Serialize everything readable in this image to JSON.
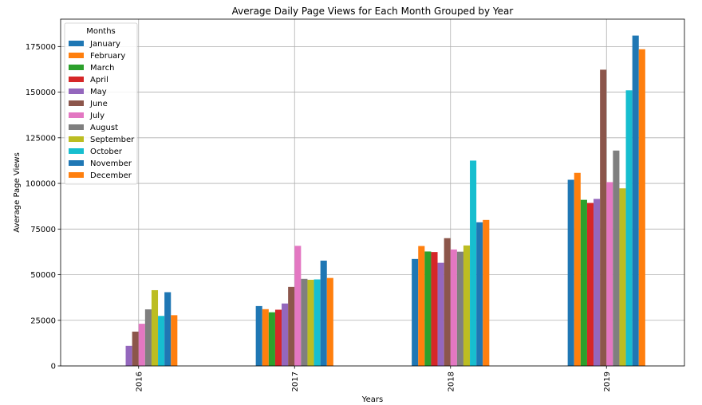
{
  "chart_data": {
    "type": "bar",
    "title": "Average Daily Page Views for Each Month Grouped by Year",
    "xlabel": "Years",
    "ylabel": "Average Page Views",
    "categories": [
      "2016",
      "2017",
      "2018",
      "2019"
    ],
    "ylim": [
      0,
      190000
    ],
    "yticks": [
      0,
      25000,
      50000,
      75000,
      100000,
      125000,
      150000,
      175000
    ],
    "grid": true,
    "legend": {
      "title": "Months",
      "placement": "top-left"
    },
    "series": [
      {
        "name": "January",
        "color": "#1f77b4",
        "values": [
          null,
          32800,
          58600,
          102000
        ]
      },
      {
        "name": "February",
        "color": "#ff7f0e",
        "values": [
          null,
          31100,
          65700,
          105800
        ]
      },
      {
        "name": "March",
        "color": "#2ca02c",
        "values": [
          null,
          29400,
          62700,
          91000
        ]
      },
      {
        "name": "April",
        "color": "#d62728",
        "values": [
          null,
          30800,
          62400,
          89300
        ]
      },
      {
        "name": "May",
        "color": "#9467bd",
        "values": [
          11000,
          34200,
          56500,
          91500
        ]
      },
      {
        "name": "June",
        "color": "#8c564b",
        "values": [
          18800,
          43300,
          70000,
          162300
        ]
      },
      {
        "name": "July",
        "color": "#e377c2",
        "values": [
          23100,
          65800,
          63800,
          100700
        ]
      },
      {
        "name": "August",
        "color": "#7f7f7f",
        "values": [
          31000,
          47700,
          62600,
          118000
        ]
      },
      {
        "name": "September",
        "color": "#bcbd22",
        "values": [
          41500,
          47200,
          66000,
          97300
        ]
      },
      {
        "name": "October",
        "color": "#17becf",
        "values": [
          27400,
          47400,
          112500,
          151000
        ]
      },
      {
        "name": "November",
        "color": "#1f77b4",
        "values": [
          40400,
          57700,
          78700,
          181000
        ]
      },
      {
        "name": "December",
        "color": "#ff7f0e",
        "values": [
          27800,
          48200,
          80000,
          173500
        ]
      }
    ]
  }
}
